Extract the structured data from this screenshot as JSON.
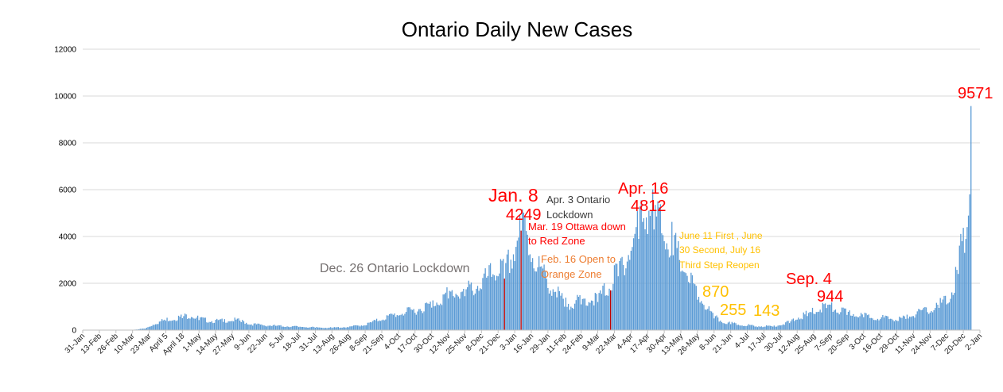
{
  "chart_data": {
    "type": "bar",
    "title": "Ontario Daily New Cases",
    "xlabel": "",
    "ylabel": "",
    "ylim": [
      0,
      12000
    ],
    "yticks": [
      0,
      2000,
      4000,
      6000,
      8000,
      10000,
      12000
    ],
    "grid": "horizontal",
    "x_range": [
      "2020-01-31",
      "2022-01-02"
    ],
    "x_tick_labels": [
      "31-Jan",
      "13-Feb",
      "26-Feb",
      "10-Mar",
      "23-Mar",
      "April 5",
      "April 18",
      "1-May",
      "14-May",
      "27-May",
      "9-Jun",
      "22-Jun",
      "5-Jul",
      "18-Jul",
      "31-Jul",
      "13-Aug",
      "26-Aug",
      "8-Sep",
      "21-Sep",
      "4-Oct",
      "17-Oct",
      "30-Oct",
      "12-Nov",
      "25-Nov",
      "8-Dec",
      "21-Dec",
      "3-Jan",
      "16-Jan",
      "29-Jan",
      "11-Feb",
      "24-Feb",
      "9-Mar",
      "22-Mar",
      "4-Apr",
      "17-Apr",
      "30-Apr",
      "13-May",
      "26-May",
      "8-Jun",
      "21-Jun",
      "4-Jul",
      "17-Jul",
      "30-Jul",
      "12-Aug",
      "25-Aug",
      "7-Sep",
      "20-Sep",
      "3-Oct",
      "16-Oct",
      "29-Oct",
      "11-Nov",
      "24-Nov",
      "7-Dec",
      "20-Dec",
      "2-Jan"
    ],
    "series_color": "#5b9bd5",
    "highlight_color": "#c00000",
    "daily_anchors": [
      [
        "2020-01-31",
        0
      ],
      [
        "2020-03-01",
        2
      ],
      [
        "2020-03-10",
        10
      ],
      [
        "2020-03-20",
        60
      ],
      [
        "2020-03-28",
        250
      ],
      [
        "2020-04-05",
        400
      ],
      [
        "2020-04-12",
        430
      ],
      [
        "2020-04-18",
        510
      ],
      [
        "2020-04-25",
        560
      ],
      [
        "2020-05-01",
        430
      ],
      [
        "2020-05-10",
        340
      ],
      [
        "2020-05-20",
        350
      ],
      [
        "2020-05-27",
        390
      ],
      [
        "2020-06-03",
        340
      ],
      [
        "2020-06-10",
        230
      ],
      [
        "2020-06-22",
        180
      ],
      [
        "2020-07-05",
        150
      ],
      [
        "2020-07-18",
        130
      ],
      [
        "2020-07-31",
        100
      ],
      [
        "2020-08-13",
        90
      ],
      [
        "2020-08-26",
        120
      ],
      [
        "2020-09-08",
        200
      ],
      [
        "2020-09-21",
        420
      ],
      [
        "2020-10-04",
        620
      ],
      [
        "2020-10-17",
        740
      ],
      [
        "2020-10-30",
        960
      ],
      [
        "2020-11-12",
        1350
      ],
      [
        "2020-11-25",
        1450
      ],
      [
        "2020-12-08",
        1750
      ],
      [
        "2020-12-21",
        2300
      ],
      [
        "2020-12-26",
        2200
      ],
      [
        "2021-01-03",
        2950
      ],
      [
        "2021-01-08",
        4249
      ],
      [
        "2021-01-14",
        3200
      ],
      [
        "2021-01-20",
        2500
      ],
      [
        "2021-01-29",
        1800
      ],
      [
        "2021-02-05",
        1400
      ],
      [
        "2021-02-11",
        1000
      ],
      [
        "2021-02-16",
        1000
      ],
      [
        "2021-02-24",
        1100
      ],
      [
        "2021-03-09",
        1200
      ],
      [
        "2021-03-19",
        1700
      ],
      [
        "2021-03-25",
        2300
      ],
      [
        "2021-04-03",
        3000
      ],
      [
        "2021-04-10",
        3900
      ],
      [
        "2021-04-16",
        4812
      ],
      [
        "2021-04-22",
        4300
      ],
      [
        "2021-04-30",
        3800
      ],
      [
        "2021-05-07",
        3200
      ],
      [
        "2021-05-13",
        2500
      ],
      [
        "2021-05-20",
        2000
      ],
      [
        "2021-05-26",
        1300
      ],
      [
        "2021-06-02",
        870
      ],
      [
        "2021-06-08",
        500
      ],
      [
        "2021-06-15",
        300
      ],
      [
        "2021-06-21",
        255
      ],
      [
        "2021-06-28",
        200
      ],
      [
        "2021-07-04",
        190
      ],
      [
        "2021-07-10",
        150
      ],
      [
        "2021-07-17",
        143
      ],
      [
        "2021-07-24",
        150
      ],
      [
        "2021-07-30",
        200
      ],
      [
        "2021-08-06",
        300
      ],
      [
        "2021-08-12",
        450
      ],
      [
        "2021-08-20",
        600
      ],
      [
        "2021-08-25",
        700
      ],
      [
        "2021-09-04",
        944
      ],
      [
        "2021-09-12",
        750
      ],
      [
        "2021-09-20",
        650
      ],
      [
        "2021-10-03",
        550
      ],
      [
        "2021-10-16",
        470
      ],
      [
        "2021-10-29",
        400
      ],
      [
        "2021-11-05",
        480
      ],
      [
        "2021-11-11",
        600
      ],
      [
        "2021-11-24",
        750
      ],
      [
        "2021-12-01",
        950
      ],
      [
        "2021-12-07",
        1100
      ],
      [
        "2021-12-12",
        1500
      ],
      [
        "2021-12-16",
        2400
      ],
      [
        "2021-12-19",
        3800
      ],
      [
        "2021-12-21",
        3300
      ],
      [
        "2021-12-23",
        4400
      ],
      [
        "2021-12-25",
        5800
      ],
      [
        "2021-12-26",
        9571
      ]
    ],
    "highlight_dates": [
      "2020-12-26",
      "2021-01-08",
      "2021-03-19"
    ],
    "annotations": [
      {
        "text": "Dec. 26 Ontario Lockdown",
        "color": "#767171"
      },
      {
        "text": "Jan. 8",
        "color": "#ff0000"
      },
      {
        "text": "4249",
        "color": "#ff0000"
      },
      {
        "text": "Apr. 3 Ontario",
        "color": "#3a3a3a"
      },
      {
        "text": "Lockdown",
        "color": "#3a3a3a"
      },
      {
        "text": "Mar. 19 Ottawa down",
        "color": "#ff0000"
      },
      {
        "text": "to Red Zone",
        "color": "#ff0000"
      },
      {
        "text": "Feb. 16 Open to",
        "color": "#ed7d31"
      },
      {
        "text": "Orange Zone",
        "color": "#ed7d31"
      },
      {
        "text": "Apr. 16",
        "color": "#ff0000"
      },
      {
        "text": "4812",
        "color": "#ff0000"
      },
      {
        "text": "June 11 First , June",
        "color": "#ffc000"
      },
      {
        "text": "30 Second, July 16",
        "color": "#ffc000"
      },
      {
        "text": "Third Step Reopen",
        "color": "#ffc000"
      },
      {
        "text": "870",
        "color": "#ffc000"
      },
      {
        "text": "255",
        "color": "#ffc000"
      },
      {
        "text": "143",
        "color": "#ffc000"
      },
      {
        "text": "Sep. 4",
        "color": "#ff0000"
      },
      {
        "text": "944",
        "color": "#ff0000"
      },
      {
        "text": "9571",
        "color": "#ff0000"
      }
    ]
  }
}
